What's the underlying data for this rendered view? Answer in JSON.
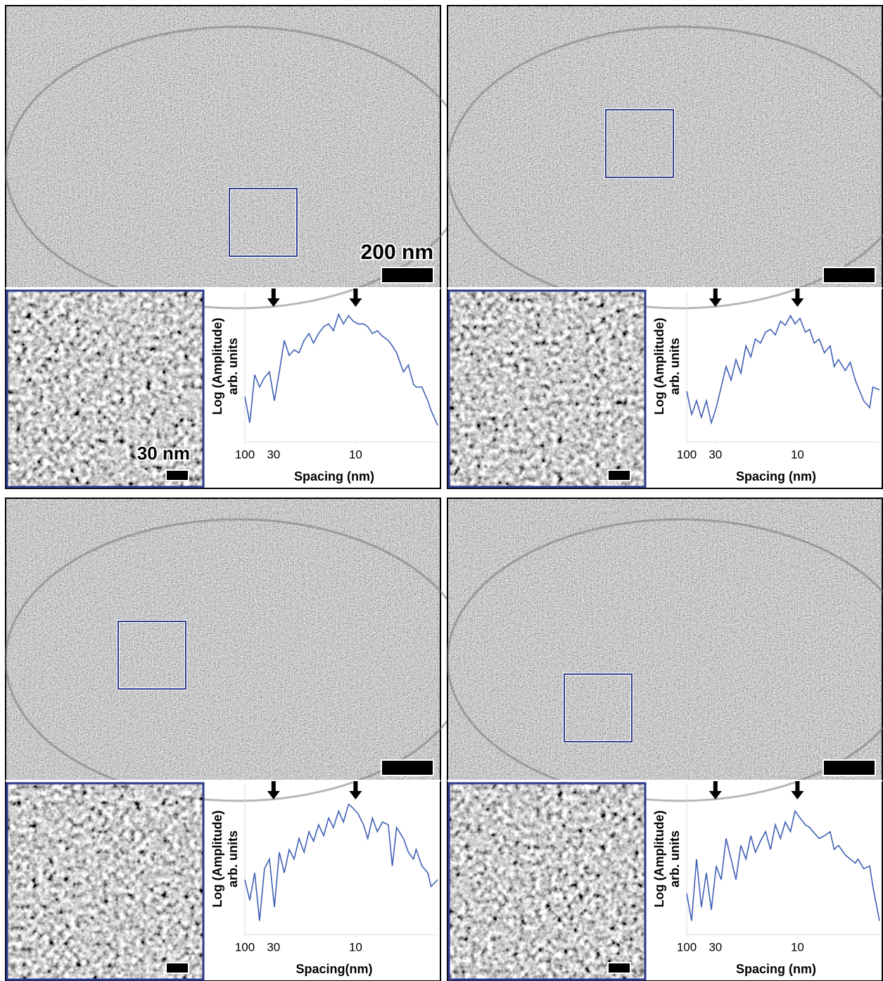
{
  "chart_data": [
    {
      "type": "line",
      "xlabel": "Spacing (nm)",
      "ylabel": [
        "Log (Amplitude)",
        "arb. units"
      ],
      "scale_bar_label": "200 nm",
      "inset_scale_bar_label": "30 nm",
      "x_scale": "reciprocal",
      "xlim": [
        100,
        6
      ],
      "xticks": [
        100,
        30,
        10
      ],
      "ylim": [
        0,
        100
      ],
      "arrows": [
        30,
        10
      ],
      "color": "#3f5fb5",
      "x": [
        100,
        71.4,
        55.6,
        45.5,
        38.5,
        33.3,
        29.4,
        26.3,
        23.8,
        21.7,
        20,
        18.5,
        17.2,
        16.1,
        15.2,
        14.3,
        13.5,
        12.8,
        12.2,
        11.6,
        11.1,
        10.6,
        10.2,
        9.8,
        9.4,
        9.1,
        8.8,
        8.5,
        8.2,
        7.9,
        7.7,
        7.5,
        7.2,
        7.0,
        6.8,
        6.7,
        6.5,
        6.3,
        6.2,
        6.0
      ],
      "values": [
        33,
        14,
        49,
        40,
        47,
        51,
        30,
        51,
        74,
        63,
        67,
        65,
        74,
        79,
        72,
        79,
        84,
        86,
        81,
        93,
        86,
        92,
        88,
        86,
        86,
        84,
        79,
        81,
        77,
        74,
        70,
        65,
        51,
        56,
        42,
        40,
        40,
        30,
        23,
        12
      ]
    },
    {
      "type": "line",
      "xlabel": "Spacing (nm)",
      "ylabel": [
        "Log (Amplitude)",
        "arb. units"
      ],
      "x_scale": "reciprocal",
      "xlim": [
        100,
        6
      ],
      "xticks": [
        100,
        30,
        10
      ],
      "ylim": [
        0,
        100
      ],
      "arrows": [
        30,
        10
      ],
      "color": "#3f5fb5",
      "x": [
        100,
        71.4,
        55.6,
        45.5,
        38.5,
        33.3,
        29.4,
        26.3,
        23.8,
        21.7,
        20,
        18.5,
        17.2,
        16.1,
        15.2,
        14.3,
        13.5,
        12.8,
        12.2,
        11.6,
        11.1,
        10.6,
        10.2,
        9.8,
        9.4,
        9.1,
        8.8,
        8.5,
        8.2,
        7.9,
        7.7,
        7.5,
        7.2,
        7.0,
        6.8,
        6.7,
        6.5,
        6.3,
        6.2,
        6.0
      ],
      "values": [
        37,
        20,
        30,
        18,
        30,
        14,
        25,
        40,
        55,
        45,
        60,
        50,
        70,
        62,
        75,
        72,
        80,
        82,
        78,
        88,
        85,
        92,
        86,
        90,
        80,
        82,
        72,
        75,
        65,
        70,
        55,
        60,
        52,
        58,
        45,
        40,
        30,
        25,
        40,
        38
      ]
    },
    {
      "type": "line",
      "xlabel": "Spacing(nm)",
      "ylabel": [
        "Log (Amplitude)",
        "arb. units"
      ],
      "x_scale": "reciprocal",
      "xlim": [
        100,
        6
      ],
      "xticks": [
        100,
        30,
        10
      ],
      "ylim": [
        0,
        100
      ],
      "arrows": [
        30,
        10
      ],
      "color": "#3f5fb5",
      "x": [
        100,
        71.4,
        55.6,
        45.5,
        38.5,
        33.3,
        29.4,
        26.3,
        23.8,
        21.7,
        20,
        18.5,
        17.2,
        16.1,
        15.2,
        14.3,
        13.5,
        12.8,
        12.2,
        11.6,
        11.1,
        10.6,
        10.2,
        9.8,
        9.4,
        9.1,
        8.8,
        8.5,
        8.2,
        7.9,
        7.7,
        7.5,
        7.2,
        7.0,
        6.8,
        6.7,
        6.5,
        6.3,
        6.2,
        6.0
      ],
      "values": [
        40,
        25,
        45,
        10,
        48,
        55,
        20,
        60,
        45,
        62,
        55,
        70,
        60,
        75,
        68,
        80,
        72,
        85,
        78,
        90,
        82,
        95,
        92,
        88,
        80,
        70,
        85,
        75,
        82,
        80,
        50,
        78,
        70,
        60,
        55,
        62,
        50,
        45,
        35,
        40
      ]
    },
    {
      "type": "line",
      "xlabel": "Spacing (nm)",
      "ylabel": [
        "Log (Amplitude)",
        "arb. units"
      ],
      "x_scale": "reciprocal",
      "xlim": [
        100,
        6
      ],
      "xticks": [
        100,
        30,
        10
      ],
      "ylim": [
        0,
        100
      ],
      "arrows": [
        30,
        10
      ],
      "color": "#3f5fb5",
      "x": [
        100,
        71.4,
        55.6,
        45.5,
        38.5,
        33.3,
        29.4,
        26.3,
        23.8,
        21.7,
        20,
        18.5,
        17.2,
        16.1,
        15.2,
        14.3,
        13.5,
        12.8,
        12.2,
        11.6,
        11.1,
        10.6,
        10.2,
        9.8,
        9.4,
        9.1,
        8.8,
        8.5,
        8.2,
        7.9,
        7.7,
        7.5,
        7.2,
        7.0,
        6.8,
        6.7,
        6.5,
        6.3,
        6.2,
        6.0
      ],
      "values": [
        30,
        10,
        55,
        20,
        45,
        18,
        50,
        40,
        70,
        55,
        40,
        65,
        55,
        72,
        60,
        68,
        75,
        62,
        80,
        70,
        82,
        75,
        90,
        85,
        80,
        78,
        74,
        70,
        72,
        75,
        62,
        65,
        58,
        55,
        52,
        55,
        48,
        50,
        35,
        10
      ]
    }
  ]
}
